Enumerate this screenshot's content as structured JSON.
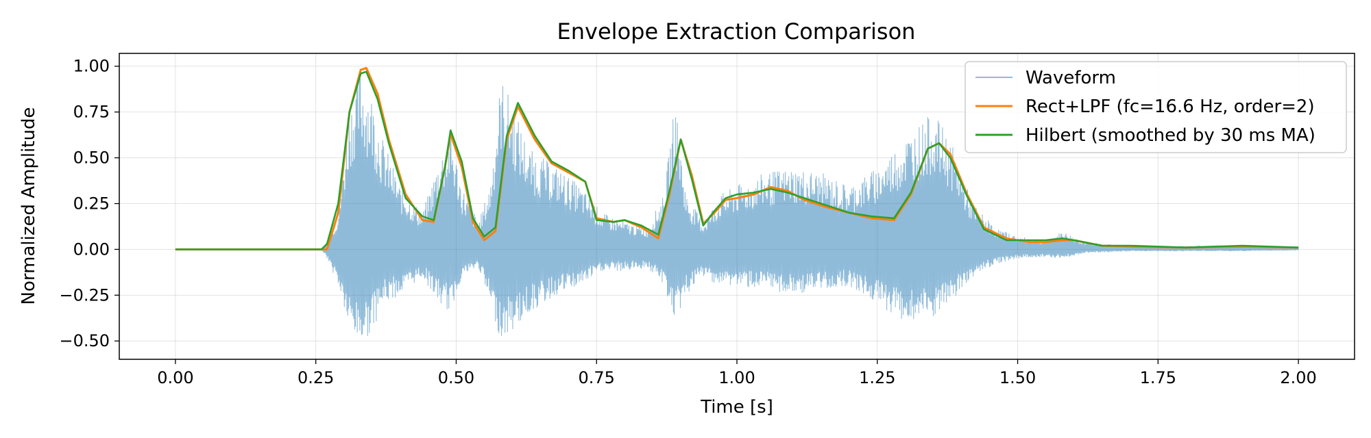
{
  "chart_data": {
    "type": "line",
    "title": "Envelope Extraction Comparison",
    "xlabel": "Time [s]",
    "ylabel": "Normalized Amplitude",
    "xlim": [
      -0.1,
      2.1
    ],
    "ylim": [
      -0.6,
      1.07
    ],
    "xticks": [
      0.0,
      0.25,
      0.5,
      0.75,
      1.0,
      1.25,
      1.5,
      1.75,
      2.0
    ],
    "xtick_labels": [
      "0.00",
      "0.25",
      "0.50",
      "0.75",
      "1.00",
      "1.25",
      "1.50",
      "1.75",
      "2.00"
    ],
    "yticks": [
      -0.5,
      -0.25,
      0.0,
      0.25,
      0.5,
      0.75,
      1.0
    ],
    "ytick_labels": [
      "−0.50",
      "−0.25",
      "0.00",
      "0.25",
      "0.50",
      "0.75",
      "1.00"
    ],
    "grid": true,
    "legend_position": "top-right",
    "series": [
      {
        "name": "Waveform",
        "color": "#1f77b4",
        "style": "thin-translucent-oscillation",
        "envelope_points": {
          "x": [
            0.0,
            0.26,
            0.27,
            0.29,
            0.31,
            0.33,
            0.35,
            0.37,
            0.4,
            0.44,
            0.47,
            0.49,
            0.51,
            0.54,
            0.56,
            0.58,
            0.6,
            0.63,
            0.68,
            0.72,
            0.76,
            0.8,
            0.84,
            0.87,
            0.89,
            0.91,
            0.94,
            0.97,
            1.0,
            1.05,
            1.1,
            1.15,
            1.2,
            1.25,
            1.3,
            1.35,
            1.38,
            1.42,
            1.46,
            1.5,
            1.55,
            1.58,
            1.62,
            1.7,
            1.8,
            1.9,
            2.0
          ],
          "upper": [
            0.0,
            0.0,
            0.05,
            0.2,
            0.8,
            1.0,
            0.85,
            0.6,
            0.35,
            0.2,
            0.5,
            0.66,
            0.35,
            0.15,
            0.35,
            0.95,
            0.8,
            0.55,
            0.45,
            0.35,
            0.2,
            0.15,
            0.12,
            0.3,
            0.82,
            0.3,
            0.15,
            0.3,
            0.35,
            0.42,
            0.45,
            0.42,
            0.35,
            0.45,
            0.62,
            0.75,
            0.6,
            0.25,
            0.12,
            0.07,
            0.05,
            0.1,
            0.04,
            0.02,
            0.02,
            0.02,
            0.01
          ],
          "lower": [
            0.0,
            0.0,
            -0.05,
            -0.2,
            -0.45,
            -0.52,
            -0.45,
            -0.3,
            -0.25,
            -0.15,
            -0.3,
            -0.35,
            -0.15,
            -0.1,
            -0.3,
            -0.5,
            -0.45,
            -0.35,
            -0.25,
            -0.2,
            -0.12,
            -0.12,
            -0.1,
            -0.2,
            -0.4,
            -0.25,
            -0.15,
            -0.2,
            -0.2,
            -0.22,
            -0.25,
            -0.22,
            -0.2,
            -0.3,
            -0.4,
            -0.38,
            -0.3,
            -0.15,
            -0.08,
            -0.05,
            -0.04,
            -0.05,
            -0.02,
            -0.01,
            -0.01,
            -0.01,
            -0.005
          ]
        }
      },
      {
        "name": "Rect+LPF (fc=16.6 Hz, order=2)",
        "color": "#ff7f0e",
        "x": [
          0.0,
          0.25,
          0.27,
          0.29,
          0.31,
          0.33,
          0.34,
          0.36,
          0.38,
          0.41,
          0.44,
          0.46,
          0.48,
          0.49,
          0.51,
          0.53,
          0.55,
          0.57,
          0.59,
          0.61,
          0.64,
          0.67,
          0.7,
          0.73,
          0.75,
          0.78,
          0.8,
          0.83,
          0.86,
          0.88,
          0.9,
          0.92,
          0.94,
          0.96,
          0.98,
          1.0,
          1.03,
          1.06,
          1.09,
          1.12,
          1.16,
          1.2,
          1.24,
          1.28,
          1.31,
          1.34,
          1.36,
          1.38,
          1.41,
          1.44,
          1.48,
          1.52,
          1.55,
          1.58,
          1.6,
          1.65,
          1.7,
          1.8,
          1.9,
          2.0
        ],
        "y": [
          0.0,
          0.0,
          0.0,
          0.2,
          0.75,
          0.98,
          0.99,
          0.85,
          0.6,
          0.3,
          0.16,
          0.15,
          0.45,
          0.63,
          0.45,
          0.15,
          0.05,
          0.1,
          0.6,
          0.78,
          0.6,
          0.47,
          0.42,
          0.37,
          0.17,
          0.15,
          0.16,
          0.12,
          0.06,
          0.3,
          0.6,
          0.4,
          0.14,
          0.2,
          0.27,
          0.28,
          0.3,
          0.34,
          0.32,
          0.27,
          0.23,
          0.2,
          0.17,
          0.16,
          0.3,
          0.55,
          0.58,
          0.52,
          0.3,
          0.12,
          0.06,
          0.04,
          0.04,
          0.05,
          0.05,
          0.02,
          0.015,
          0.01,
          0.015,
          0.01
        ]
      },
      {
        "name": "Hilbert (smoothed by 30 ms MA)",
        "color": "#2ca02c",
        "x": [
          0.0,
          0.26,
          0.27,
          0.29,
          0.31,
          0.33,
          0.34,
          0.36,
          0.38,
          0.41,
          0.44,
          0.46,
          0.48,
          0.49,
          0.51,
          0.53,
          0.55,
          0.57,
          0.59,
          0.61,
          0.64,
          0.67,
          0.7,
          0.73,
          0.75,
          0.78,
          0.8,
          0.83,
          0.86,
          0.88,
          0.9,
          0.92,
          0.94,
          0.96,
          0.98,
          1.0,
          1.03,
          1.06,
          1.09,
          1.12,
          1.16,
          1.2,
          1.24,
          1.28,
          1.31,
          1.34,
          1.36,
          1.38,
          1.41,
          1.44,
          1.48,
          1.52,
          1.55,
          1.58,
          1.6,
          1.65,
          1.7,
          1.8,
          1.9,
          2.0
        ],
        "y": [
          0.0,
          0.0,
          0.03,
          0.25,
          0.75,
          0.96,
          0.97,
          0.82,
          0.58,
          0.28,
          0.18,
          0.16,
          0.45,
          0.65,
          0.48,
          0.17,
          0.07,
          0.12,
          0.62,
          0.8,
          0.62,
          0.48,
          0.43,
          0.37,
          0.16,
          0.15,
          0.16,
          0.13,
          0.08,
          0.32,
          0.6,
          0.38,
          0.13,
          0.21,
          0.28,
          0.3,
          0.31,
          0.33,
          0.31,
          0.28,
          0.24,
          0.2,
          0.18,
          0.17,
          0.31,
          0.55,
          0.58,
          0.5,
          0.29,
          0.11,
          0.05,
          0.05,
          0.05,
          0.06,
          0.05,
          0.02,
          0.02,
          0.01,
          0.02,
          0.01
        ]
      }
    ]
  }
}
